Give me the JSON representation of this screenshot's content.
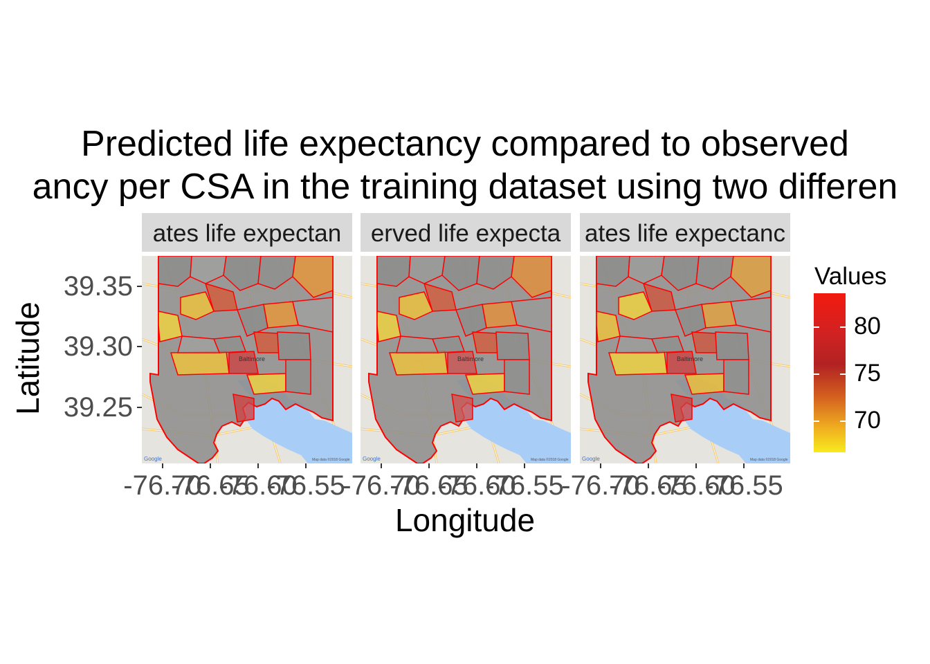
{
  "title": {
    "line1": "Predicted life expectancy compared to observed",
    "line2": "ancy per CSA in the training dataset using two differen"
  },
  "facets": [
    {
      "strip": "ates life expectan",
      "attribution": "Google",
      "copyright": "Map data ©2018 Google"
    },
    {
      "strip": "erved life expecta",
      "attribution": "Google",
      "copyright": "Map data ©2018 Google"
    },
    {
      "strip": "ates life expectanc",
      "attribution": "Google",
      "copyright": "Map data ©2018 Google"
    }
  ],
  "map_labels": {
    "city": "Baltimore"
  },
  "axes": {
    "x_title": "Longitude",
    "y_title": "Latitude",
    "y_ticks": [
      "39.35",
      "39.30",
      "39.25"
    ],
    "x_ticks": [
      "-76.70",
      "-76.65",
      "-76.60",
      "-76.55"
    ]
  },
  "legend": {
    "title": "Values",
    "ticks": [
      "80",
      "75",
      "70"
    ],
    "colors": {
      "high": "#f21a0f",
      "mid": "#b22222",
      "low": "#f7ea1d"
    }
  },
  "colors": {
    "outline": "#ff0000",
    "water": "#a8cdf7",
    "land": "#e6e4de",
    "strip": "#d9d9d9"
  }
}
